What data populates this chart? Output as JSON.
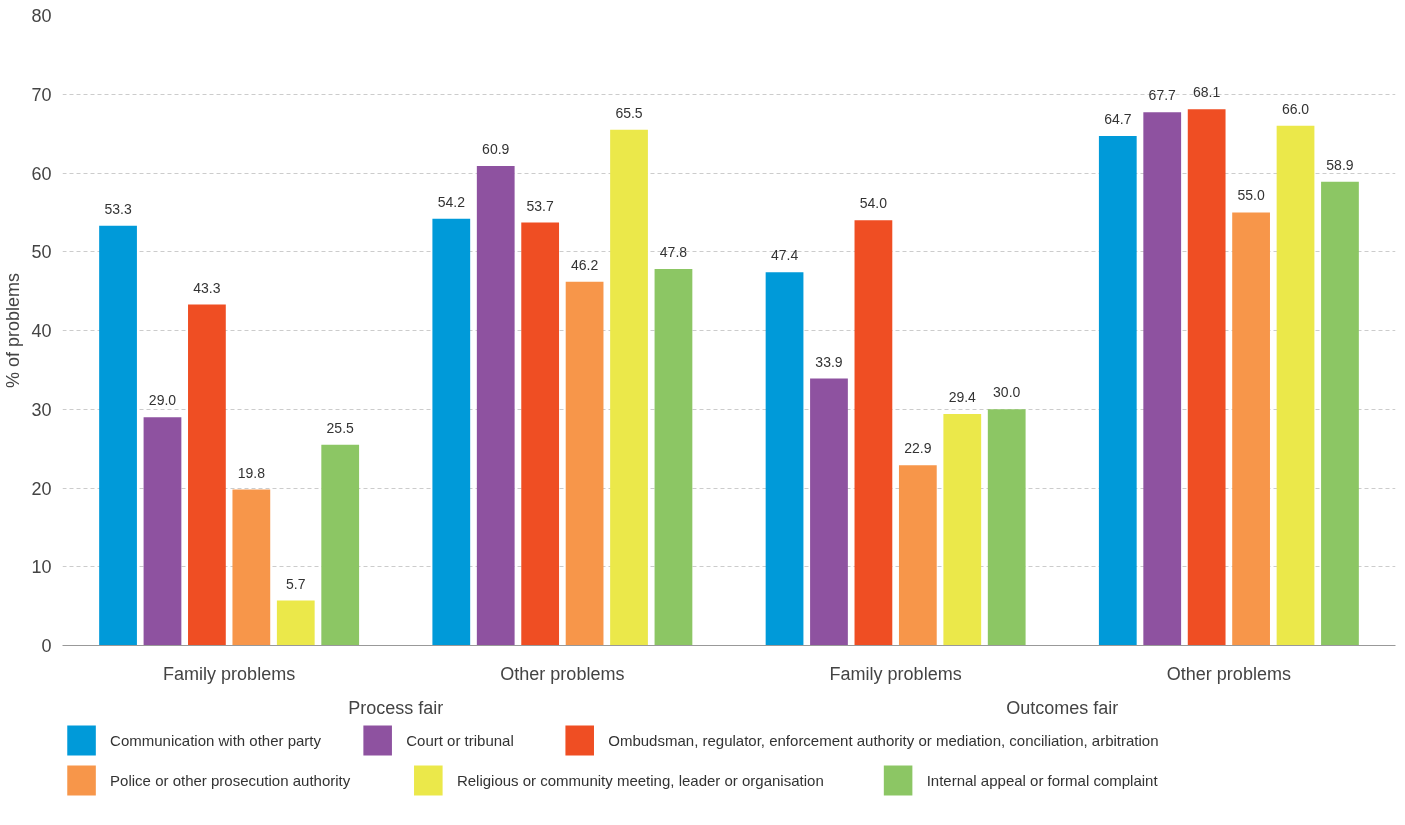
{
  "chart_data": {
    "type": "bar",
    "ylabel": "% of problems",
    "categories": [
      "Family problems",
      "Other problems",
      "Family problems",
      "Other problems"
    ],
    "annotations": [
      "Process fair",
      "Outcomes fair"
    ],
    "series": [
      {
        "name": "Communication with other party",
        "color": "#009ad9",
        "values": [
          53.3,
          54.2,
          47.4,
          64.7
        ],
        "value_labels": [
          "53.3",
          "54.2",
          "47.4",
          "64.7"
        ]
      },
      {
        "name": "Court or tribunal",
        "color": "#8e52a0",
        "values": [
          29.0,
          60.9,
          33.9,
          67.7
        ],
        "value_labels": [
          "29.0",
          "60.9",
          "33.9",
          "67.7"
        ]
      },
      {
        "name": "Ombudsman, regulator, enforcement authority or mediation, conciliation, arbitration",
        "color": "#ef4e23",
        "values": [
          43.3,
          53.7,
          54.0,
          68.1
        ],
        "value_labels": [
          "43.3",
          "53.7",
          "54.0",
          "68.1"
        ]
      },
      {
        "name": "Police or other prosecution authority",
        "color": "#f7964a",
        "values": [
          19.8,
          46.2,
          22.9,
          55.0
        ],
        "value_labels": [
          "19.8",
          "46.2",
          "22.9",
          "55.0"
        ]
      },
      {
        "name": "Religious or community meeting, leader or organisation",
        "color": "#ebe84a",
        "values": [
          5.7,
          65.5,
          29.4,
          66.0
        ],
        "value_labels": [
          "5.7",
          "65.5",
          "29.4",
          "66.0"
        ]
      },
      {
        "name": "Internal appeal or formal complaint",
        "color": "#8cc664",
        "values": [
          25.5,
          47.8,
          30.0,
          58.9
        ],
        "value_labels": [
          "25.5",
          "47.8",
          "30.0",
          "58.9"
        ]
      }
    ],
    "ylim": [
      0,
      80
    ],
    "yticks": [
      0,
      10,
      20,
      30,
      40,
      50,
      60,
      70,
      80
    ],
    "grid": "y",
    "legend": "bottom"
  }
}
